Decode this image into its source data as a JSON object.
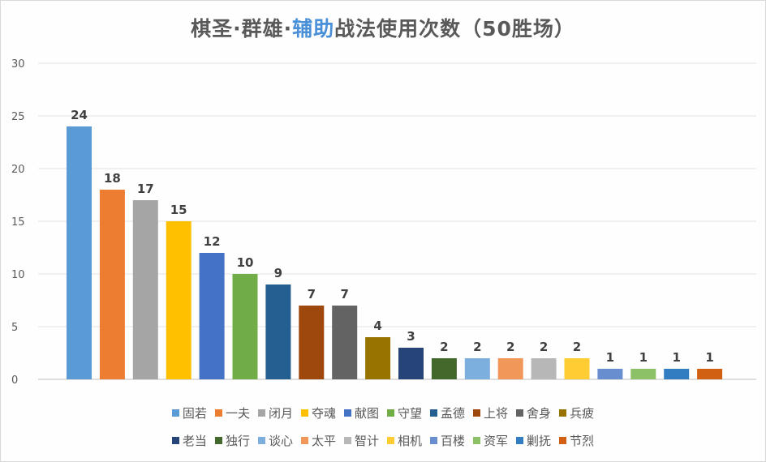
{
  "title": {
    "part1": "棋圣·群雄·",
    "part2": "辅助",
    "part3": "战法使用次数（50胜场）"
  },
  "chart_data": {
    "type": "bar",
    "title": "棋圣·群雄·辅助战法使用次数（50胜场）",
    "categories": [
      "固若",
      "一夫",
      "闭月",
      "夺魂",
      "献图",
      "守望",
      "孟德",
      "上将",
      "舍身",
      "兵疲",
      "老当",
      "独行",
      "谈心",
      "太平",
      "智计",
      "相机",
      "百楼",
      "资军",
      "剿抚",
      "节烈"
    ],
    "values": [
      24,
      18,
      17,
      15,
      12,
      10,
      9,
      7,
      7,
      4,
      3,
      2,
      2,
      2,
      2,
      2,
      1,
      1,
      1,
      1
    ],
    "colors": [
      "#5b9bd5",
      "#ed7d31",
      "#a5a5a5",
      "#ffc000",
      "#4472c4",
      "#70ad47",
      "#255e91",
      "#9e480e",
      "#636363",
      "#997300",
      "#264478",
      "#43682b",
      "#7cafdd",
      "#f1975a",
      "#b7b7b7",
      "#ffcd33",
      "#698ed0",
      "#8cc168",
      "#327dc2",
      "#d26012"
    ],
    "yticks": [
      0,
      5,
      10,
      15,
      20,
      25,
      30
    ],
    "ylim": [
      0,
      30
    ],
    "grid": true,
    "legend_position": "bottom"
  }
}
